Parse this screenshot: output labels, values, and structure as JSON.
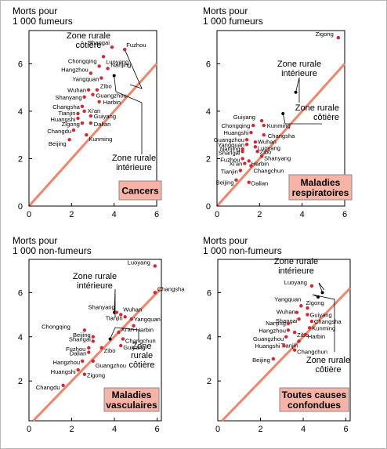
{
  "chart_data": [
    {
      "type": "scatter",
      "title": "Cancers",
      "ylabel": "Morts pour\n1 000 fumeurs",
      "xlim": [
        0,
        6
      ],
      "ylim": [
        0,
        7.4
      ],
      "xticks": [
        "0",
        "2",
        "4",
        "6"
      ],
      "yticks": [
        "0",
        "2",
        "4",
        "6"
      ],
      "grid": false,
      "reference_line": "y = x",
      "points": [
        {
          "name": "Fuzhou",
          "x": 4.5,
          "y": 6.6
        },
        {
          "name": "Shangai",
          "x": 3.9,
          "y": 6.7
        },
        {
          "name": "Luoyang",
          "x": 3.5,
          "y": 6.3
        },
        {
          "name": "Chongqing",
          "x": 3.3,
          "y": 5.9
        },
        {
          "name": "Nanjing",
          "x": 3.7,
          "y": 5.8
        },
        {
          "name": "Hangzhou",
          "x": 2.9,
          "y": 5.6
        },
        {
          "name": "Yangquan",
          "x": 3.4,
          "y": 5.4
        },
        {
          "name": "Wuhan",
          "x": 2.8,
          "y": 4.9
        },
        {
          "name": "Zibo",
          "x": 3.2,
          "y": 4.9
        },
        {
          "name": "Guangzhou",
          "x": 3.0,
          "y": 4.7
        },
        {
          "name": "Shanyang",
          "x": 2.6,
          "y": 4.6
        },
        {
          "name": "Harbin",
          "x": 3.3,
          "y": 4.4
        },
        {
          "name": "Changsha",
          "x": 2.5,
          "y": 4.2
        },
        {
          "name": "Xi'an",
          "x": 2.6,
          "y": 4.0
        },
        {
          "name": "Tianjin",
          "x": 2.3,
          "y": 3.9
        },
        {
          "name": "Huangshi",
          "x": 2.3,
          "y": 3.7
        },
        {
          "name": "Guiyang",
          "x": 2.9,
          "y": 3.8
        },
        {
          "name": "Zigong",
          "x": 2.5,
          "y": 3.5
        },
        {
          "name": "Dalian",
          "x": 2.9,
          "y": 3.5
        },
        {
          "name": "Changdu",
          "x": 2.1,
          "y": 3.2
        },
        {
          "name": "Kunming",
          "x": 2.7,
          "y": 3.0
        },
        {
          "name": "Beijing",
          "x": 1.9,
          "y": 2.8
        }
      ],
      "annotations": [
        {
          "text": "Zone rurale\ncôtière",
          "x": 4.5,
          "y": 6.6
        },
        {
          "text": "Zone rurale\nintérieure",
          "x": 4.0,
          "y": 5.5
        }
      ]
    },
    {
      "type": "scatter",
      "title": "Maladies\nrespiratoires",
      "ylabel": "Morts pour\n1 000 fumeurs",
      "xlim": [
        0,
        6
      ],
      "ylim": [
        0,
        7.4
      ],
      "xticks": [
        "0",
        "2",
        "4",
        "6"
      ],
      "yticks": [
        "0",
        "2",
        "4",
        "6"
      ],
      "grid": false,
      "reference_line": "y = x",
      "points": [
        {
          "name": "Zigong",
          "x": 5.7,
          "y": 7.1
        },
        {
          "name": "Guiyang",
          "x": 2.1,
          "y": 3.6
        },
        {
          "name": "Chongqing",
          "x": 1.7,
          "y": 3.4
        },
        {
          "name": "Kunming",
          "x": 2.2,
          "y": 3.4
        },
        {
          "name": "Huangshi",
          "x": 1.6,
          "y": 3.1
        },
        {
          "name": "Changsha",
          "x": 2.2,
          "y": 3.0
        },
        {
          "name": "Guangzhou",
          "x": 1.4,
          "y": 2.8
        },
        {
          "name": "Wuhan",
          "x": 1.8,
          "y": 2.7
        },
        {
          "name": "Yangquan",
          "x": 1.4,
          "y": 2.6
        },
        {
          "name": "Luoyang",
          "x": 1.8,
          "y": 2.5
        },
        {
          "name": "Nanjing",
          "x": 1.2,
          "y": 2.4
        },
        {
          "name": "Shangai",
          "x": 1.2,
          "y": 2.3
        },
        {
          "name": "Zibo",
          "x": 1.9,
          "y": 2.3
        },
        {
          "name": "Fuzhou",
          "x": 1.2,
          "y": 2.0
        },
        {
          "name": "Harbin",
          "x": 1.5,
          "y": 1.9
        },
        {
          "name": "Shanyang",
          "x": 2.1,
          "y": 2.1
        },
        {
          "name": "Xi'an",
          "x": 1.3,
          "y": 1.8
        },
        {
          "name": "Changchun",
          "x": 1.6,
          "y": 1.7
        },
        {
          "name": "Tianjin",
          "x": 1.1,
          "y": 1.5
        },
        {
          "name": "Beijing",
          "x": 0.9,
          "y": 1.1
        },
        {
          "name": "Dalian",
          "x": 1.5,
          "y": 1.0
        }
      ],
      "annotations": [
        {
          "text": "Zone rurale\nintérieure",
          "x": 3.7,
          "y": 4.8
        },
        {
          "text": "Zone rurale\ncôtière",
          "x": 3.1,
          "y": 3.9
        }
      ]
    },
    {
      "type": "scatter",
      "title": "Maladies\nvasculaires",
      "ylabel": "Morts pour\n1 000 non-fumeurs",
      "xlim": [
        0,
        6.2
      ],
      "ylim": [
        0.2,
        7.5
      ],
      "xticks": [
        "0",
        "2",
        "4",
        "6"
      ],
      "yticks": [
        "2",
        "4",
        "6"
      ],
      "grid": false,
      "reference_line": "y = x",
      "points": [
        {
          "name": "Luoyang",
          "x": 5.9,
          "y": 7.2
        },
        {
          "name": "Changsha",
          "x": 5.9,
          "y": 6.0
        },
        {
          "name": "Shanyang",
          "x": 4.1,
          "y": 5.1
        },
        {
          "name": "Wuhan",
          "x": 4.3,
          "y": 5.0
        },
        {
          "name": "Tianjin",
          "x": 4.5,
          "y": 4.9
        },
        {
          "name": "Yangquan",
          "x": 4.8,
          "y": 4.8
        },
        {
          "name": "Harbin",
          "x": 4.9,
          "y": 4.5
        },
        {
          "name": "Chongqing",
          "x": 2.6,
          "y": 4.3
        },
        {
          "name": "Xi'an",
          "x": 4.2,
          "y": 4.2
        },
        {
          "name": "Beijing",
          "x": 3.0,
          "y": 4.0
        },
        {
          "name": "Changchun",
          "x": 4.4,
          "y": 3.9
        },
        {
          "name": "Shangai",
          "x": 3.0,
          "y": 3.8
        },
        {
          "name": "Guiyang",
          "x": 4.3,
          "y": 3.6
        },
        {
          "name": "Fuzhou",
          "x": 2.8,
          "y": 3.5
        },
        {
          "name": "Zibo",
          "x": 3.4,
          "y": 3.5
        },
        {
          "name": "Dalian",
          "x": 2.8,
          "y": 3.3
        },
        {
          "name": "Hangzhou",
          "x": 2.5,
          "y": 2.9
        },
        {
          "name": "Guangzhou",
          "x": 3.0,
          "y": 2.9
        },
        {
          "name": "Huangshi",
          "x": 2.3,
          "y": 2.5
        },
        {
          "name": "Zigong",
          "x": 2.6,
          "y": 2.3
        },
        {
          "name": "Changdu",
          "x": 1.6,
          "y": 1.8
        }
      ],
      "annotations": [
        {
          "text": "Zone rurale\nintérieure",
          "x": 4.0,
          "y": 5.1
        },
        {
          "text": "Zone\nrurale\ncôtière",
          "x": 3.8,
          "y": 3.9
        }
      ]
    },
    {
      "type": "scatter",
      "title": "Toutes causes\nconfondues",
      "ylabel": "Morts pour\n1 000 non-fumeurs",
      "xlim": [
        0,
        6.2
      ],
      "ylim": [
        0.2,
        7.5
      ],
      "xticks": [
        "0",
        "2",
        "4",
        "6"
      ],
      "yticks": [
        "2",
        "4",
        "6"
      ],
      "grid": false,
      "reference_line": "y = x",
      "points": [
        {
          "name": "Luoyang",
          "x": 4.4,
          "y": 6.3
        },
        {
          "name": "Yangquan",
          "x": 3.9,
          "y": 5.4
        },
        {
          "name": "Zigong",
          "x": 4.2,
          "y": 5.3
        },
        {
          "name": "Wuhan",
          "x": 3.7,
          "y": 5.1
        },
        {
          "name": "Guiyang",
          "x": 4.2,
          "y": 5.0
        },
        {
          "name": "Shangai",
          "x": 3.8,
          "y": 4.8
        },
        {
          "name": "Changsha",
          "x": 4.4,
          "y": 4.7
        },
        {
          "name": "Nanjing",
          "x": 3.3,
          "y": 4.6
        },
        {
          "name": "Kunming",
          "x": 4.3,
          "y": 4.4
        },
        {
          "name": "Hangzhou",
          "x": 3.3,
          "y": 4.3
        },
        {
          "name": "Zibo",
          "x": 3.6,
          "y": 4.2
        },
        {
          "name": "Harbin",
          "x": 4.1,
          "y": 4.1
        },
        {
          "name": "Guangzhou",
          "x": 3.2,
          "y": 4.0
        },
        {
          "name": "Tianjin",
          "x": 3.8,
          "y": 3.8
        },
        {
          "name": "Huangshi",
          "x": 3.1,
          "y": 3.6
        },
        {
          "name": "Changchun",
          "x": 3.6,
          "y": 3.4
        },
        {
          "name": "Beijing",
          "x": 2.6,
          "y": 3.0
        }
      ],
      "annotations": [
        {
          "text": "Zone rurale\nintérieure",
          "x": 4.9,
          "y": 6.0
        },
        {
          "text": "Zone rurale\ncôtière",
          "x": 4.7,
          "y": 5.8
        }
      ]
    }
  ]
}
